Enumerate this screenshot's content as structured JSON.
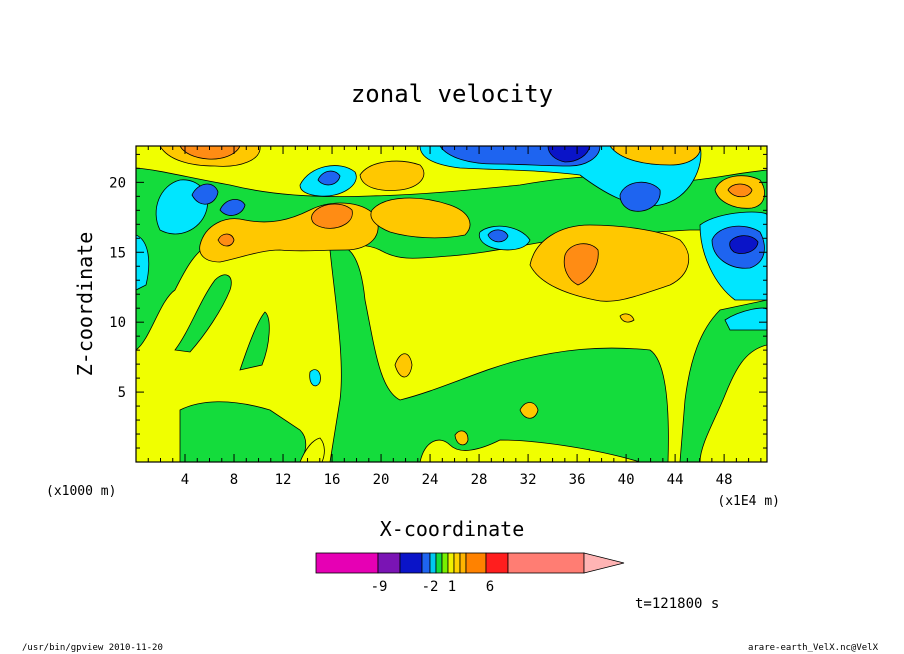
{
  "chart_data": {
    "type": "heatmap",
    "title": "zonal velocity",
    "xlabel": "X-coordinate",
    "ylabel": "Z-coordinate",
    "x_unit_left": "(x1000 m)",
    "x_unit_right": "(x1E4 m)",
    "x_ticks": [
      "4",
      "8",
      "12",
      "16",
      "20",
      "24",
      "28",
      "32",
      "36",
      "40",
      "44",
      "48"
    ],
    "y_ticks": [
      "5",
      "10",
      "15",
      "20"
    ],
    "xlim": [
      0,
      51.5
    ],
    "ylim": [
      0,
      22.6
    ],
    "time_label": "t=121800 s",
    "colorbar": {
      "labels": [
        "-9",
        "-2",
        "1",
        "6"
      ],
      "colors": [
        "#e600b4",
        "#7a14b4",
        "#0a14c8",
        "#1e64f0",
        "#00c8f0",
        "#14dc3c",
        "#78f000",
        "#f0f000",
        "#ffd200",
        "#ffb400",
        "#ff8200",
        "#ff1e1e",
        "#ff7d73",
        "#ffb4b4"
      ]
    },
    "field_colors": {
      "strong_negative": "#0a14c8",
      "negative": "#1e64f0",
      "weak_negative": "#00e6ff",
      "near_zero": "#14dc3c",
      "weak_positive": "#f0ff00",
      "positive": "#ffc800",
      "strong_positive": "#ff8c14"
    }
  },
  "footer": {
    "left": "/usr/bin/gpview   2010-11-20",
    "right": "arare-earth_VelX.nc@VelX"
  }
}
